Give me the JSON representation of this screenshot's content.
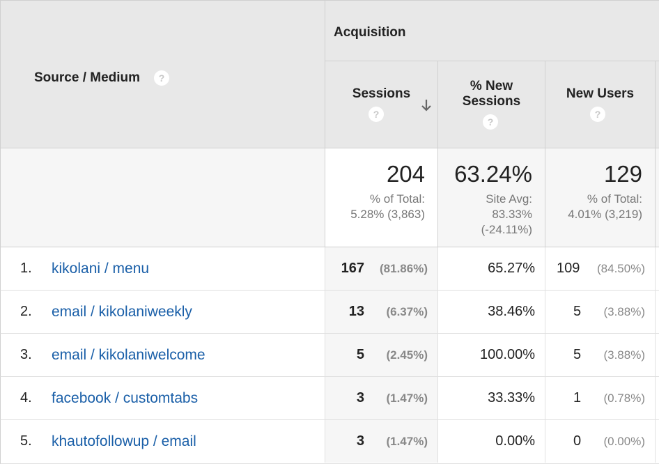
{
  "header": {
    "source_medium": "Source / Medium",
    "acquisition": "Acquisition",
    "sessions": "Sessions",
    "new_sessions_line1": "% New",
    "new_sessions_line2": "Sessions",
    "new_users": "New Users",
    "help_glyph": "?"
  },
  "totals": {
    "sessions": {
      "value": "204",
      "line1": "% of Total:",
      "line2": "5.28% (3,863)"
    },
    "new_sessions": {
      "value": "63.24%",
      "line1": "Site Avg:",
      "line2": "83.33%",
      "line3": "(-24.11%)"
    },
    "new_users": {
      "value": "129",
      "line1": "% of Total:",
      "line2": "4.01% (3,219)"
    }
  },
  "rows": [
    {
      "index": "1.",
      "source": "kikolani / menu",
      "sessions": "167",
      "sessions_pct": "(81.86%)",
      "new_sessions": "65.27%",
      "new_users": "109",
      "new_users_pct": "(84.50%)"
    },
    {
      "index": "2.",
      "source": "email / kikolaniweekly",
      "sessions": "13",
      "sessions_pct": "(6.37%)",
      "new_sessions": "38.46%",
      "new_users": "5",
      "new_users_pct": "(3.88%)"
    },
    {
      "index": "3.",
      "source": "email / kikolaniwelcome",
      "sessions": "5",
      "sessions_pct": "(2.45%)",
      "new_sessions": "100.00%",
      "new_users": "5",
      "new_users_pct": "(3.88%)"
    },
    {
      "index": "4.",
      "source": "facebook / customtabs",
      "sessions": "3",
      "sessions_pct": "(1.47%)",
      "new_sessions": "33.33%",
      "new_users": "1",
      "new_users_pct": "(0.78%)"
    },
    {
      "index": "5.",
      "source": "khautofollowup / email",
      "sessions": "3",
      "sessions_pct": "(1.47%)",
      "new_sessions": "0.00%",
      "new_users": "0",
      "new_users_pct": "(0.00%)"
    }
  ],
  "colors": {
    "link": "#1a5fa8",
    "header_bg": "#e8e8e8",
    "muted": "#888888"
  },
  "icons": {
    "sort": "arrow-down-icon",
    "help": "help-circle-icon"
  }
}
